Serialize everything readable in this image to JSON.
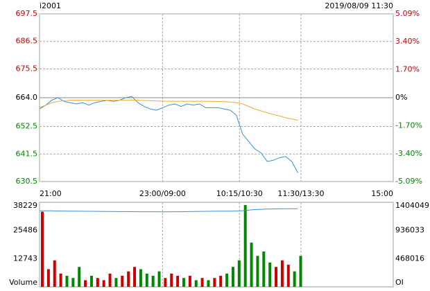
{
  "chart_data": [
    {
      "type": "line",
      "title": "i2001",
      "subtitle": "2019/08/09 11:30",
      "xlim": [
        0,
        345
      ],
      "xticks": [
        {
          "value": 0,
          "label": "21:00"
        },
        {
          "value": 120,
          "label": "23:00/09:00"
        },
        {
          "value": 195,
          "label": "10:15/10:30"
        },
        {
          "value": 255,
          "label": "11:30/13:30"
        },
        {
          "value": 345,
          "label": "15:00"
        }
      ],
      "ylim": [
        630.5,
        697.5
      ],
      "yticks": [
        697.5,
        686.5,
        675.5,
        {
          "value": 664,
          "label": "664.0"
        },
        652.5,
        641.5,
        630.5
      ],
      "y2lim": [
        -5.09,
        5.09
      ],
      "y2ticks": [
        {
          "value": 5.09,
          "label": "5.09%"
        },
        {
          "value": 3.4,
          "label": "3.40%"
        },
        {
          "value": 1.7,
          "label": "1.70%"
        },
        {
          "value": 0,
          "label": "0%"
        },
        {
          "value": -1.7,
          "label": "-1.70%"
        },
        {
          "value": -3.4,
          "label": "-3.40%"
        },
        {
          "value": -5.09,
          "label": "-5.09%"
        }
      ],
      "up_color": "#cc0000",
      "down_color": "#008800",
      "flat_color": "#000000",
      "grid": true,
      "x": [
        0,
        6,
        12,
        18,
        24,
        30,
        36,
        42,
        48,
        54,
        60,
        66,
        72,
        78,
        84,
        90,
        96,
        102,
        108,
        114,
        120,
        126,
        132,
        138,
        144,
        150,
        156,
        162,
        168,
        174,
        180,
        186,
        192,
        198,
        204,
        210,
        216,
        222,
        228,
        234,
        240,
        246,
        252
      ],
      "series": [
        {
          "color": "#3a8fd6",
          "values": [
            659.5,
            661,
            663,
            664,
            662.5,
            662,
            661.5,
            662,
            661,
            662,
            662.5,
            663,
            662.5,
            663,
            664,
            664.5,
            662,
            660.5,
            659.5,
            659,
            660,
            661,
            661.5,
            660.5,
            661.5,
            661,
            661.5,
            660,
            660,
            660,
            659.5,
            659,
            657,
            649.5,
            646.5,
            643.5,
            642,
            638.5,
            639,
            640,
            640.5,
            638.5,
            634
          ]
        },
        {
          "color": "#f0a830",
          "values": [
            660,
            661,
            662,
            662.5,
            662.8,
            663,
            663,
            663,
            663,
            663,
            663,
            663,
            663,
            663,
            663,
            663.1,
            663,
            662.9,
            662.8,
            662.7,
            662.6,
            662.6,
            662.6,
            662.6,
            662.6,
            662.6,
            662.6,
            662.6,
            662.5,
            662.5,
            662.4,
            662.3,
            662,
            661.5,
            660.5,
            659.5,
            658.7,
            658,
            657.3,
            656.7,
            656,
            655.5,
            655
          ]
        }
      ]
    },
    {
      "type": "bar",
      "xlim": [
        0,
        345
      ],
      "ylim": [
        0,
        38229
      ],
      "yticks": [
        {
          "value": 0,
          "label": "Volume"
        },
        12743,
        25486,
        38229
      ],
      "y2lim": [
        0,
        1404049
      ],
      "y2ticks": [
        {
          "value": 0,
          "label": "OI"
        },
        468016,
        936033,
        1404049
      ],
      "x": [
        0,
        6,
        12,
        18,
        24,
        30,
        36,
        42,
        48,
        54,
        60,
        66,
        72,
        78,
        84,
        90,
        96,
        102,
        108,
        114,
        120,
        126,
        132,
        138,
        144,
        150,
        156,
        162,
        168,
        174,
        180,
        186,
        192,
        198,
        204,
        210,
        216,
        222,
        228,
        234,
        240,
        246,
        252
      ],
      "values": [
        34000,
        8000,
        12000,
        6000,
        5000,
        4000,
        9000,
        3000,
        5000,
        4000,
        3000,
        6000,
        4000,
        5000,
        7000,
        9000,
        8000,
        6000,
        5000,
        7000,
        4000,
        6000,
        5000,
        4000,
        5000,
        3000,
        4000,
        3000,
        4000,
        5000,
        6000,
        9000,
        12000,
        37000,
        20000,
        14000,
        16000,
        11000,
        9000,
        12000,
        10000,
        7000,
        14000
      ],
      "series": [
        {
          "axis": "y2",
          "color": "#3a8fd6",
          "values": [
            1262000,
            1263000,
            1262000,
            1260000,
            1259000,
            1258000,
            1257000,
            1256000,
            1255000,
            1254000,
            1253000,
            1252000,
            1251000,
            1250000,
            1250000,
            1249000,
            1248000,
            1248000,
            1247000,
            1247000,
            1246000,
            1246000,
            1247000,
            1248000,
            1250000,
            1252000,
            1253000,
            1255000,
            1256000,
            1257000,
            1258000,
            1258000,
            1260000,
            1265000,
            1275000,
            1283000,
            1288000,
            1292000,
            1294000,
            1296000,
            1297000,
            1298000,
            1298000
          ]
        }
      ]
    }
  ]
}
